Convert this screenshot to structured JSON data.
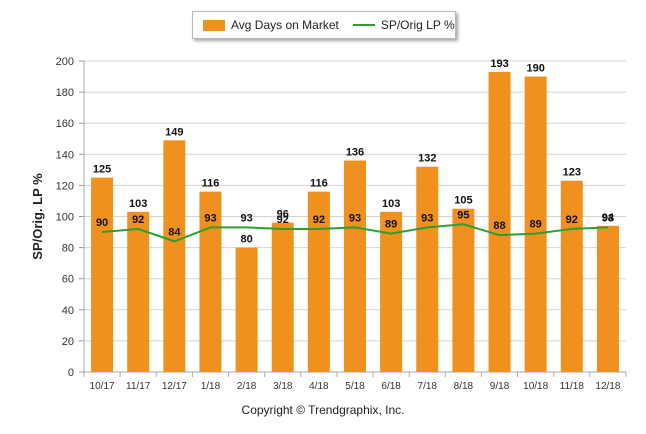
{
  "chart_data": {
    "type": "bar",
    "categories": [
      "10/17",
      "11/17",
      "12/17",
      "1/18",
      "2/18",
      "3/18",
      "4/18",
      "5/18",
      "6/18",
      "7/18",
      "8/18",
      "9/18",
      "10/18",
      "11/18",
      "12/18"
    ],
    "series": [
      {
        "name": "Avg Days on Market",
        "type": "bar",
        "color": "#F0901E",
        "values": [
          125,
          103,
          149,
          116,
          80,
          96,
          116,
          136,
          103,
          132,
          105,
          193,
          190,
          123,
          94
        ]
      },
      {
        "name": "SP/Orig LP %",
        "type": "line",
        "color": "#2E9E2E",
        "values": [
          90,
          92,
          84,
          93,
          93,
          92,
          92,
          93,
          89,
          93,
          95,
          88,
          89,
          92,
          93
        ]
      }
    ],
    "ylabel": "SP/Orig. LP %",
    "xlabel": "",
    "ylim": [
      0,
      200
    ],
    "yticks": [
      0,
      20,
      40,
      60,
      80,
      100,
      120,
      140,
      160,
      180,
      200
    ],
    "grid": true,
    "legend": "top-center"
  },
  "footer": {
    "copyright": "Copyright © Trendgraphix, Inc."
  }
}
